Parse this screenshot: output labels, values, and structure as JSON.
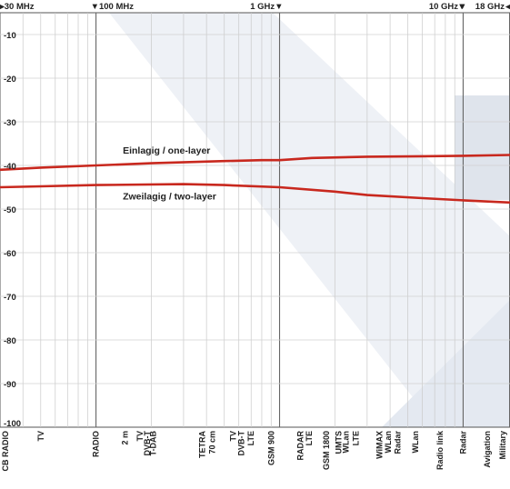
{
  "chart_data": {
    "type": "line",
    "x_scale": "log",
    "x_unit": "MHz",
    "xlim": [
      30,
      18000
    ],
    "ylim": [
      -100,
      -5
    ],
    "grid": true,
    "top_labels": [
      {
        "label": "30 MHz",
        "x": 30
      },
      {
        "label": "100 MHz",
        "x": 100
      },
      {
        "label": "1 GHz",
        "x": 1000
      },
      {
        "label": "10 GHz",
        "x": 10000
      },
      {
        "label": "18 GHz",
        "x": 18000
      }
    ],
    "y_ticks": [
      -10,
      -20,
      -30,
      -40,
      -50,
      -60,
      -70,
      -80,
      -90,
      -100
    ],
    "bottom_labels": [
      {
        "text": "CB RADIO",
        "x": 30
      },
      {
        "text": "TV",
        "x": 50
      },
      {
        "text": "RADIO",
        "x": 100
      },
      {
        "text": "2 m",
        "x": 144
      },
      {
        "text": "TV",
        "x": 174
      },
      {
        "text": "DVB-T",
        "x": 190
      },
      {
        "text": "T-DAB",
        "x": 205
      },
      {
        "text": "TETRA",
        "x": 380
      },
      {
        "text": "70 cm",
        "x": 430
      },
      {
        "text": "TV",
        "x": 560
      },
      {
        "text": "DVB-T",
        "x": 620
      },
      {
        "text": "LTE",
        "x": 700
      },
      {
        "text": "GSM 900",
        "x": 900
      },
      {
        "text": "RADAR",
        "x": 1300
      },
      {
        "text": "LTE",
        "x": 1450
      },
      {
        "text": "GSM 1800",
        "x": 1800
      },
      {
        "text": "UMTS",
        "x": 2100
      },
      {
        "text": "WLan",
        "x": 2300
      },
      {
        "text": "LTE",
        "x": 2600
      },
      {
        "text": "WiMAX",
        "x": 3500
      },
      {
        "text": "WLan",
        "x": 3900
      },
      {
        "text": "Radar",
        "x": 4400
      },
      {
        "text": "WLan",
        "x": 5500
      },
      {
        "text": "Radio link",
        "x": 7500
      },
      {
        "text": "Radar",
        "x": 10000
      },
      {
        "text": "Avigation",
        "x": 13500
      },
      {
        "text": "Military",
        "x": 17500
      }
    ],
    "series": [
      {
        "name": "Einlagig / one-layer",
        "color": "#c8281e",
        "x": [
          30,
          50,
          100,
          200,
          500,
          800,
          1000,
          1500,
          3000,
          6000,
          10000,
          18000
        ],
        "y": [
          -41,
          -40.5,
          -40,
          -39.5,
          -39,
          -38.8,
          -38.8,
          -38.3,
          -38,
          -37.9,
          -37.8,
          -37.6
        ]
      },
      {
        "name": "Zweilagig / two-layer",
        "color": "#c8281e",
        "x": [
          30,
          50,
          100,
          300,
          500,
          1000,
          2000,
          3000,
          6000,
          10000,
          18000
        ],
        "y": [
          -45,
          -44.8,
          -44.5,
          -44.3,
          -44.5,
          -45,
          -46,
          -46.8,
          -47.5,
          -48,
          -48.5
        ]
      }
    ]
  }
}
